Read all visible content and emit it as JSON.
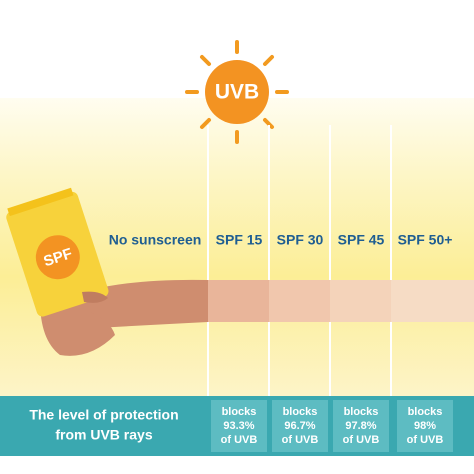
{
  "sun": {
    "label": "UVB"
  },
  "tube": {
    "label": "SPF"
  },
  "columns": [
    "No sunscreen",
    "SPF 15",
    "SPF 30",
    "SPF 45",
    "SPF 50+"
  ],
  "footer": {
    "title": [
      "The level of protection",
      "from UVB rays"
    ],
    "cells": [
      [
        "blocks",
        "93.3%",
        "of UVB"
      ],
      [
        "blocks",
        "96.7%",
        "of UVB"
      ],
      [
        "blocks",
        "97.8%",
        "of UVB"
      ],
      [
        "blocks",
        "98%",
        "of UVB"
      ]
    ]
  }
}
